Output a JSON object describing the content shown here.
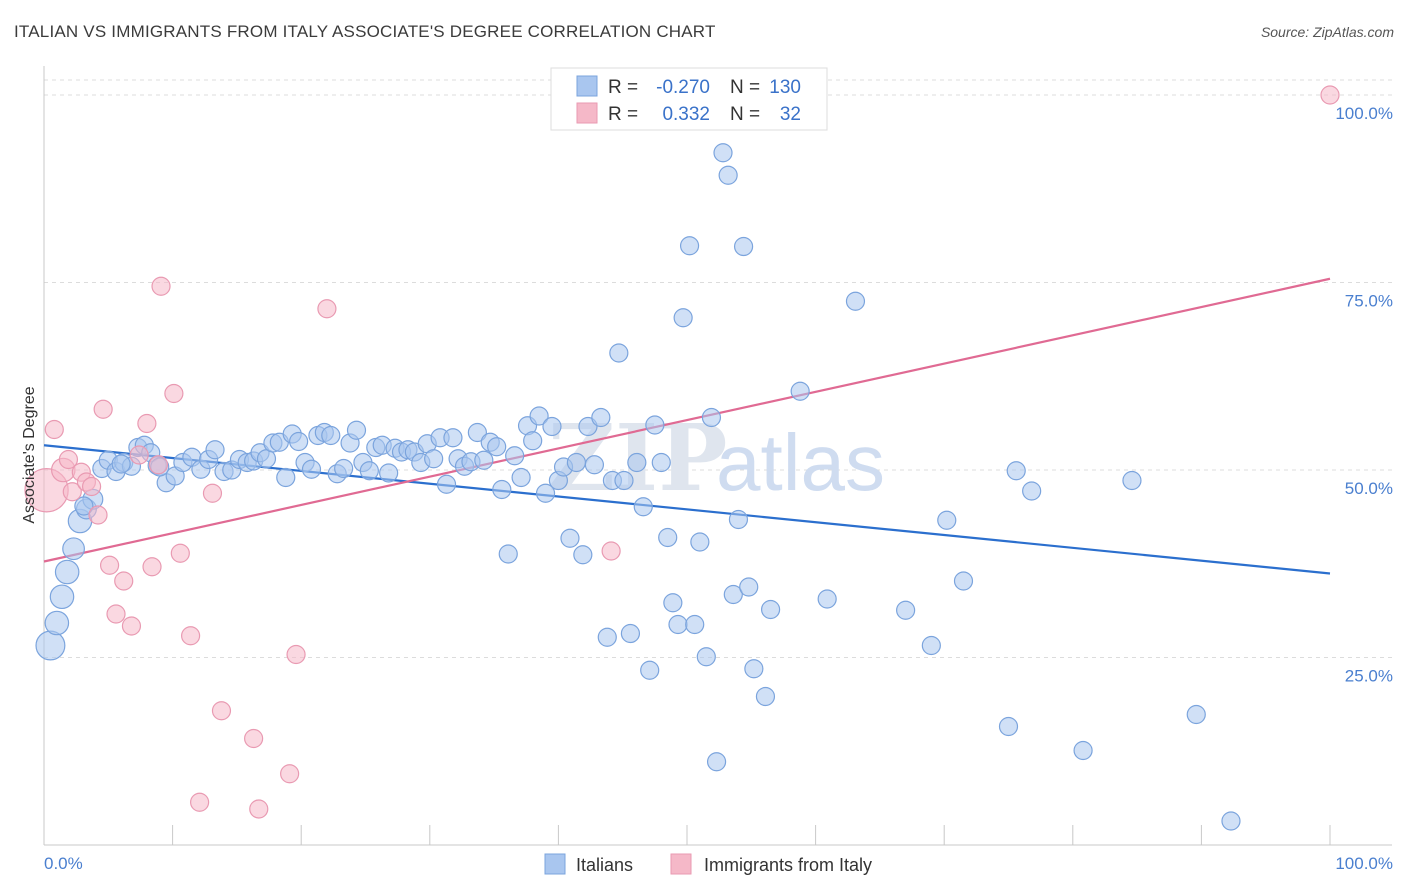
{
  "title": "ITALIAN VS IMMIGRANTS FROM ITALY ASSOCIATE'S DEGREE CORRELATION CHART",
  "source": "Source: ZipAtlas.com",
  "watermark": "ZIPatlas",
  "chart_data": {
    "type": "scatter",
    "title": "ITALIAN VS IMMIGRANTS FROM ITALY ASSOCIATE'S DEGREE CORRELATION CHART",
    "xlabel": "",
    "ylabel": "Associate's Degree",
    "xlim": [
      0,
      100
    ],
    "ylim": [
      0,
      102
    ],
    "x_tick_labels": [
      {
        "value": 0,
        "label": "0.0%"
      },
      {
        "value": 100,
        "label": "100.0%"
      }
    ],
    "y_ticks": [
      {
        "value": 25,
        "label": "25.0%"
      },
      {
        "value": 50,
        "label": "50.0%"
      },
      {
        "value": 75,
        "label": "75.0%"
      },
      {
        "value": 100,
        "label": "100.0%"
      }
    ],
    "stats_legend": [
      {
        "r_label": "R =",
        "r_value": "-0.270",
        "n_label": "N =",
        "n_value": "130",
        "color": "#a9c6ef"
      },
      {
        "r_label": "R =",
        "r_value": "0.332",
        "n_label": "N =",
        "n_value": "32",
        "color": "#f5b8c8"
      }
    ],
    "series": [
      {
        "name": "Italians",
        "color": "#a9c6ef",
        "stroke": "#7ba4dd",
        "trend_color": "#2b6fce",
        "trend": {
          "x": [
            0,
            100
          ],
          "y": [
            53.3,
            36.2
          ]
        },
        "points": [
          [
            0.5,
            26.6,
            1.6
          ],
          [
            1.0,
            29.6,
            1.3
          ],
          [
            1.4,
            33.1,
            1.3
          ],
          [
            1.8,
            36.4,
            1.3
          ],
          [
            2.3,
            39.5,
            1.2
          ],
          [
            2.8,
            43.2,
            1.3
          ],
          [
            3.3,
            44.8,
            1.1
          ],
          [
            3.8,
            46.1,
            1.1
          ],
          [
            4.5,
            50.2,
            1
          ],
          [
            5.0,
            51.3,
            1
          ],
          [
            5.6,
            49.8,
            1
          ],
          [
            6.2,
            51.0,
            1
          ],
          [
            6.8,
            50.5,
            1
          ],
          [
            7.3,
            53.0,
            1
          ],
          [
            7.8,
            53.3,
            1
          ],
          [
            8.3,
            52.3,
            1
          ],
          [
            8.8,
            50.6,
            1
          ],
          [
            9.5,
            48.3,
            1
          ],
          [
            10.2,
            49.2,
            1
          ],
          [
            10.8,
            51.0,
            1
          ],
          [
            11.5,
            51.7,
            1
          ],
          [
            12.2,
            50.1,
            1
          ],
          [
            12.8,
            51.4,
            1
          ],
          [
            13.3,
            52.7,
            1
          ],
          [
            14.0,
            49.8,
            1
          ],
          [
            14.6,
            50.0,
            1
          ],
          [
            15.2,
            51.4,
            1
          ],
          [
            15.8,
            51.0,
            1
          ],
          [
            16.3,
            51.2,
            1
          ],
          [
            16.8,
            52.3,
            1
          ],
          [
            17.3,
            51.5,
            1
          ],
          [
            17.8,
            53.6,
            1
          ],
          [
            18.3,
            53.7,
            1
          ],
          [
            18.8,
            49.0,
            1
          ],
          [
            19.3,
            54.8,
            1
          ],
          [
            19.8,
            53.8,
            1
          ],
          [
            20.3,
            51.0,
            1
          ],
          [
            20.8,
            50.1,
            1
          ],
          [
            21.3,
            54.6,
            1
          ],
          [
            21.8,
            55.0,
            1
          ],
          [
            22.3,
            54.6,
            1
          ],
          [
            22.8,
            49.5,
            1
          ],
          [
            23.3,
            50.2,
            1
          ],
          [
            23.8,
            53.6,
            1
          ],
          [
            24.3,
            55.3,
            1
          ],
          [
            24.8,
            51.0,
            1
          ],
          [
            25.3,
            49.9,
            1
          ],
          [
            25.8,
            53.0,
            1
          ],
          [
            26.3,
            53.3,
            1
          ],
          [
            26.8,
            49.6,
            1
          ],
          [
            27.3,
            52.9,
            1
          ],
          [
            27.8,
            52.4,
            1
          ],
          [
            28.3,
            52.7,
            1
          ],
          [
            28.8,
            52.4,
            1
          ],
          [
            29.3,
            51.0,
            1
          ],
          [
            29.8,
            53.5,
            1
          ],
          [
            30.3,
            51.5,
            1
          ],
          [
            30.8,
            54.3,
            1
          ],
          [
            31.3,
            48.1,
            1
          ],
          [
            31.8,
            54.3,
            1
          ],
          [
            32.2,
            51.5,
            1
          ],
          [
            32.7,
            50.5,
            1
          ],
          [
            33.2,
            51.1,
            1
          ],
          [
            33.7,
            55.0,
            1
          ],
          [
            34.2,
            51.3,
            1
          ],
          [
            34.7,
            53.7,
            1
          ],
          [
            35.2,
            53.1,
            1
          ],
          [
            35.6,
            47.4,
            1
          ],
          [
            36.1,
            38.8,
            1
          ],
          [
            36.6,
            51.9,
            1
          ],
          [
            37.1,
            49.0,
            1
          ],
          [
            37.6,
            55.9,
            1
          ],
          [
            38.0,
            53.9,
            1
          ],
          [
            38.5,
            57.2,
            1
          ],
          [
            39.0,
            46.9,
            1
          ],
          [
            39.5,
            55.8,
            1
          ],
          [
            40.0,
            48.6,
            1
          ],
          [
            40.4,
            50.4,
            1
          ],
          [
            40.9,
            40.9,
            1
          ],
          [
            41.4,
            51.0,
            1
          ],
          [
            41.9,
            38.7,
            1
          ],
          [
            42.3,
            55.8,
            1
          ],
          [
            42.8,
            50.7,
            1
          ],
          [
            43.3,
            57.0,
            1
          ],
          [
            43.8,
            27.7,
            1
          ],
          [
            44.2,
            48.6,
            1
          ],
          [
            44.7,
            65.6,
            1
          ],
          [
            45.1,
            48.6,
            1
          ],
          [
            45.6,
            28.2,
            1
          ],
          [
            46.1,
            51.0,
            1
          ],
          [
            46.6,
            45.1,
            1
          ],
          [
            47.1,
            23.3,
            1
          ],
          [
            47.5,
            56.0,
            1
          ],
          [
            48.0,
            51.0,
            1
          ],
          [
            48.5,
            41.0,
            1
          ],
          [
            48.9,
            32.3,
            1
          ],
          [
            49.3,
            29.4,
            1
          ],
          [
            49.7,
            70.3,
            1
          ],
          [
            50.2,
            79.9,
            1
          ],
          [
            50.6,
            29.4,
            1
          ],
          [
            51.0,
            40.4,
            1
          ],
          [
            51.5,
            25.1,
            1
          ],
          [
            51.9,
            57.0,
            1
          ],
          [
            52.3,
            11.1,
            1
          ],
          [
            52.8,
            92.3,
            1
          ],
          [
            53.2,
            89.3,
            1
          ],
          [
            53.6,
            33.4,
            1
          ],
          [
            54.0,
            43.4,
            1
          ],
          [
            54.4,
            79.8,
            1
          ],
          [
            54.8,
            34.4,
            1
          ],
          [
            55.2,
            23.5,
            1
          ],
          [
            56.1,
            19.8,
            1
          ],
          [
            56.5,
            31.4,
            1
          ],
          [
            58.8,
            60.5,
            1
          ],
          [
            60.9,
            32.8,
            1
          ],
          [
            63.1,
            72.5,
            1
          ],
          [
            67.0,
            31.3,
            1
          ],
          [
            69.0,
            26.6,
            1
          ],
          [
            70.2,
            43.3,
            1
          ],
          [
            71.5,
            35.2,
            1
          ],
          [
            75.0,
            15.8,
            1
          ],
          [
            75.6,
            49.9,
            1
          ],
          [
            76.8,
            47.2,
            1
          ],
          [
            80.8,
            12.6,
            1
          ],
          [
            84.6,
            48.6,
            1
          ],
          [
            89.6,
            17.4,
            1
          ],
          [
            92.3,
            3.2,
            1
          ],
          [
            3.1,
            45.2,
            1
          ],
          [
            6.0,
            50.8,
            1
          ],
          [
            9.0,
            50.4,
            1
          ]
        ]
      },
      {
        "name": "Immigrants from Italy",
        "color": "#f5b8c8",
        "stroke": "#e99ab2",
        "trend_color": "#e06a93",
        "trend": {
          "x": [
            0,
            100
          ],
          "y": [
            37.8,
            75.5
          ]
        },
        "points": [
          [
            0.2,
            47.3,
            2.4
          ],
          [
            0.8,
            55.4,
            1
          ],
          [
            1.5,
            50.0,
            1.3
          ],
          [
            1.9,
            51.4,
            1
          ],
          [
            2.2,
            47.1,
            1
          ],
          [
            2.9,
            49.7,
            1
          ],
          [
            3.3,
            48.4,
            1
          ],
          [
            3.7,
            47.8,
            1
          ],
          [
            4.2,
            44.0,
            1
          ],
          [
            4.6,
            58.1,
            1
          ],
          [
            5.1,
            37.3,
            1
          ],
          [
            5.6,
            30.8,
            1
          ],
          [
            6.2,
            35.2,
            1
          ],
          [
            6.8,
            29.2,
            1
          ],
          [
            7.4,
            52.0,
            1
          ],
          [
            8.0,
            56.2,
            1
          ],
          [
            8.4,
            37.1,
            1
          ],
          [
            8.9,
            50.7,
            1
          ],
          [
            9.1,
            74.5,
            1
          ],
          [
            10.1,
            60.2,
            1
          ],
          [
            10.6,
            38.9,
            1
          ],
          [
            11.4,
            27.9,
            1
          ],
          [
            12.1,
            5.7,
            1
          ],
          [
            13.1,
            46.9,
            1
          ],
          [
            13.8,
            17.9,
            1
          ],
          [
            16.3,
            14.2,
            1
          ],
          [
            16.7,
            4.8,
            1
          ],
          [
            19.1,
            9.5,
            1
          ],
          [
            19.6,
            25.4,
            1
          ],
          [
            22.0,
            71.5,
            1
          ],
          [
            44.1,
            39.2,
            1
          ],
          [
            100.0,
            100.0,
            1
          ]
        ]
      }
    ]
  }
}
